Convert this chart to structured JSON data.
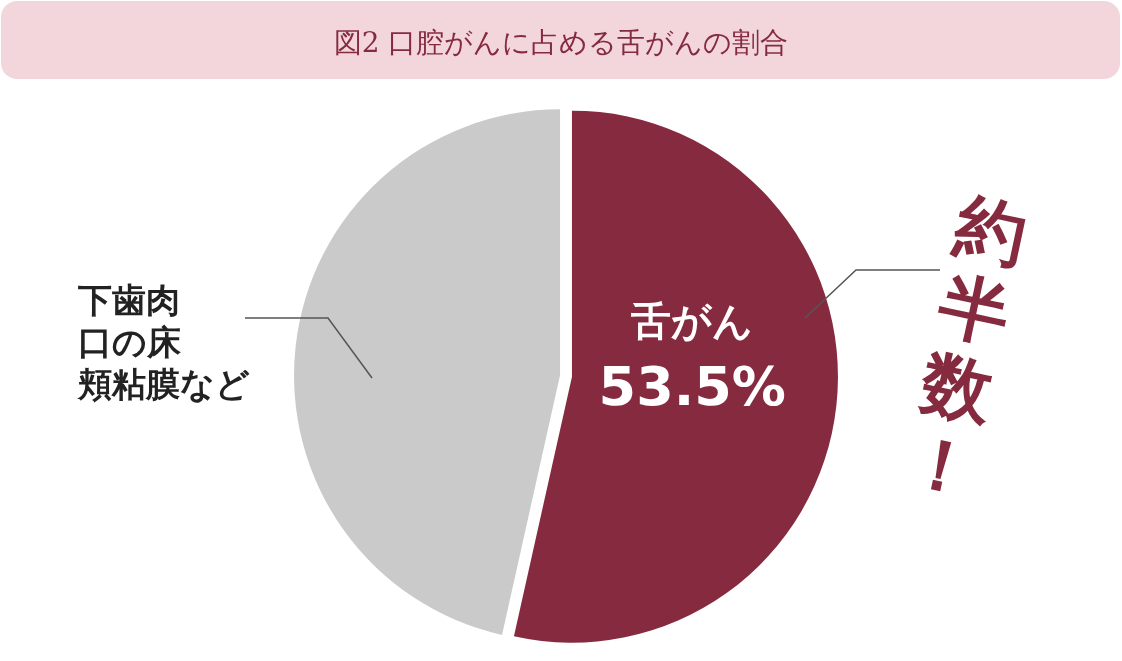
{
  "chart_data": {
    "type": "pie",
    "title": "図2  口腔がんに占める舌がんの割合",
    "categories": [
      "舌がん",
      "下歯肉口の床頬粘膜など"
    ],
    "values": [
      53.5,
      46.5
    ],
    "colors": [
      "#862b3f",
      "#cacaca"
    ],
    "value_labels": [
      "53.5%",
      null
    ],
    "annotations": [
      "約半数！"
    ]
  }
}
